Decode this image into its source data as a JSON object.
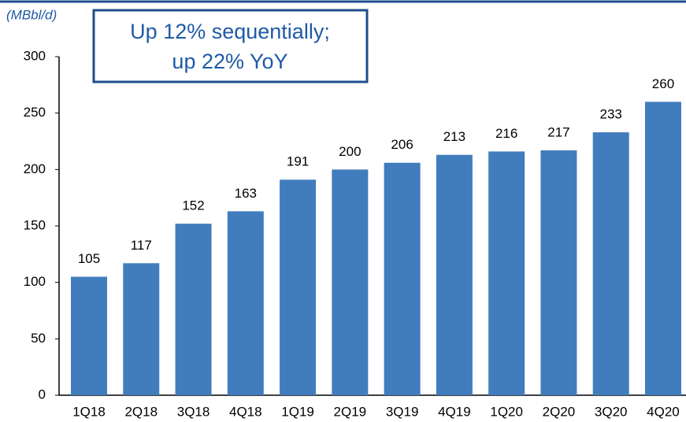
{
  "chart_data": {
    "type": "bar",
    "y_label": "(MBbl/d)",
    "annotation": [
      "Up 12% sequentially;",
      "up 22% YoY"
    ],
    "categories": [
      "1Q18",
      "2Q18",
      "3Q18",
      "4Q18",
      "1Q19",
      "2Q19",
      "3Q19",
      "4Q19",
      "1Q20",
      "2Q20",
      "3Q20",
      "4Q20"
    ],
    "values": [
      105,
      117,
      152,
      163,
      191,
      200,
      206,
      213,
      216,
      217,
      233,
      260
    ],
    "color": "#417dbd",
    "ylim": [
      0,
      300
    ],
    "yticks": [
      0,
      50,
      100,
      150,
      200,
      250,
      300
    ],
    "grid": false
  }
}
